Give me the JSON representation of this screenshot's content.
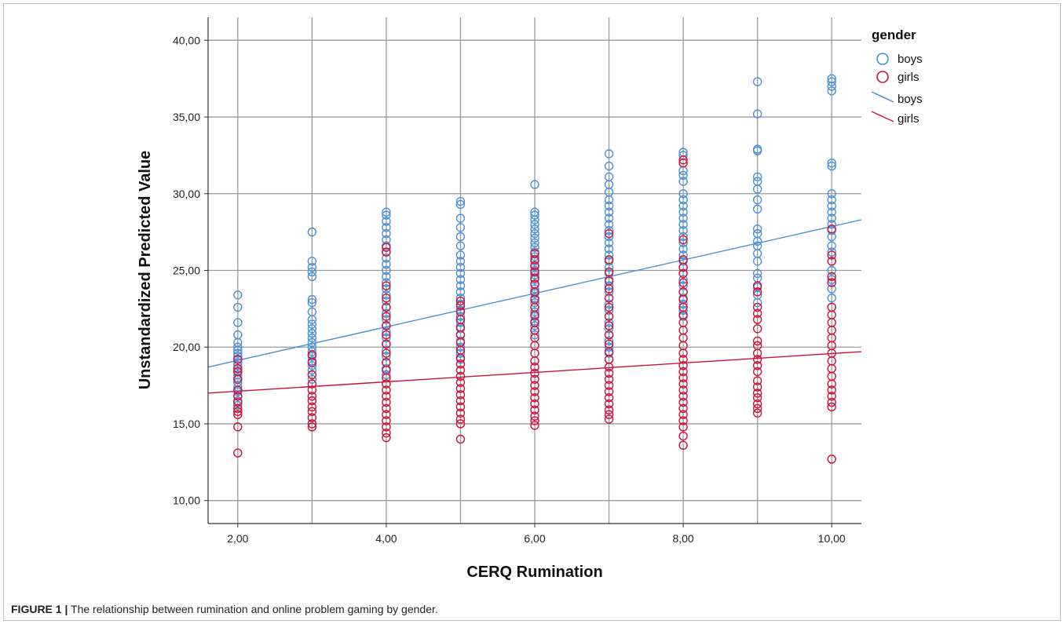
{
  "caption": {
    "label": "FIGURE 1 |",
    "text": "The relationship between rumination and online problem gaming by gender."
  },
  "colors": {
    "boys": "#4a90d9",
    "girls": "#d0103a",
    "grid": "#9a9a9a",
    "axis": "#333333"
  },
  "chart_data": {
    "type": "scatter",
    "xlabel": "CERQ Rumination",
    "ylabel": "Unstandardized Predicted Value",
    "xlim": [
      1.6,
      10.4
    ],
    "ylim": [
      8.5,
      41.5
    ],
    "x_ticks": [
      2,
      4,
      6,
      8,
      10
    ],
    "x_tick_labels": [
      "2,00",
      "4,00",
      "6,00",
      "8,00",
      "10,00"
    ],
    "x_grid": [
      2,
      3,
      4,
      5,
      6,
      7,
      8,
      9,
      10
    ],
    "y_ticks": [
      10,
      15,
      20,
      25,
      30,
      35,
      40
    ],
    "y_tick_labels": [
      "10,00",
      "15,00",
      "20,00",
      "25,00",
      "30,00",
      "35,00",
      "40,00"
    ],
    "grid": true,
    "legend": {
      "title": "gender",
      "position": "top-right",
      "entries": [
        {
          "label": "boys",
          "kind": "marker",
          "series": "boys"
        },
        {
          "label": "girls",
          "kind": "marker",
          "series": "girls"
        },
        {
          "label": "boys",
          "kind": "line",
          "series": "boys"
        },
        {
          "label": "girls",
          "kind": "line",
          "series": "girls"
        }
      ]
    },
    "series": [
      {
        "name": "boys",
        "points": [
          {
            "x": 2,
            "y": [
              23.4,
              22.6,
              21.6,
              20.8,
              20.3,
              20.0,
              19.8,
              19.6,
              19.4,
              19.2,
              19.0,
              18.8,
              18.6,
              18.4,
              18.2,
              18.0,
              17.7,
              17.4,
              17.1,
              16.8,
              16.5,
              16.2
            ]
          },
          {
            "x": 3,
            "y": [
              27.5,
              25.6,
              25.2,
              24.9,
              24.6,
              23.1,
              22.9,
              22.3,
              21.8,
              21.5,
              21.2,
              20.9,
              20.6,
              20.3,
              20.0,
              19.7,
              19.4,
              19.1,
              18.8,
              18.5,
              18.2,
              17.9
            ]
          },
          {
            "x": 4,
            "y": [
              28.8,
              28.6,
              28.2,
              27.8,
              27.4,
              27.0,
              26.6,
              26.2,
              25.8,
              25.4,
              25.0,
              24.6,
              24.2,
              23.8,
              23.4,
              23.0,
              22.6,
              22.2,
              21.8,
              21.4,
              21.0,
              20.6,
              20.2,
              19.8,
              19.4,
              19.0,
              18.6,
              18.2
            ]
          },
          {
            "x": 5,
            "y": [
              29.5,
              29.3,
              28.4,
              27.8,
              27.2,
              26.6,
              26.0,
              25.6,
              25.2,
              24.8,
              24.4,
              24.0,
              23.6,
              23.2,
              22.8,
              22.4,
              22.0,
              21.6,
              21.2,
              20.8,
              20.4,
              20.0,
              19.6,
              19.2
            ]
          },
          {
            "x": 6,
            "y": [
              30.6,
              28.8,
              28.6,
              28.3,
              28.0,
              27.7,
              27.4,
              27.1,
              26.8,
              26.5,
              26.2,
              25.9,
              25.6,
              25.3,
              25.0,
              24.7,
              24.4,
              24.1,
              23.8,
              23.5,
              23.2,
              22.9,
              22.6,
              22.3,
              22.0,
              21.7,
              21.4,
              21.1,
              20.8
            ]
          },
          {
            "x": 7,
            "y": [
              32.6,
              31.8,
              31.1,
              30.6,
              30.1,
              29.6,
              29.2,
              28.8,
              28.4,
              28.0,
              27.6,
              27.2,
              26.8,
              26.4,
              26.0,
              25.6,
              25.2,
              24.8,
              24.4,
              24.0,
              23.6,
              23.2,
              22.8,
              22.4,
              22.0,
              21.6,
              21.2,
              20.8,
              20.4,
              20.0,
              19.6,
              19.2
            ]
          },
          {
            "x": 8,
            "y": [
              32.7,
              32.5,
              31.5,
              31.2,
              30.8,
              30.0,
              29.6,
              29.2,
              28.8,
              28.4,
              28.0,
              27.6,
              27.2,
              26.8,
              26.4,
              26.0,
              25.6,
              25.2,
              24.8,
              24.4,
              24.0,
              23.6,
              23.2,
              22.8,
              22.4,
              22.0
            ]
          },
          {
            "x": 9,
            "y": [
              37.3,
              35.2,
              32.9,
              32.8,
              31.1,
              30.8,
              30.3,
              29.6,
              29.0,
              27.7,
              27.4,
              26.9,
              26.6,
              26.1,
              25.6,
              24.8,
              24.5,
              23.9,
              23.4,
              22.9
            ]
          },
          {
            "x": 10,
            "y": [
              37.5,
              37.3,
              37.0,
              36.7,
              32.0,
              31.8,
              30.0,
              29.6,
              29.2,
              28.8,
              28.4,
              28.0,
              27.6,
              27.2,
              26.6,
              26.2,
              25.6,
              25.0,
              24.4,
              23.8,
              23.2,
              22.6
            ]
          }
        ],
        "fit_line": {
          "x": [
            1.6,
            10.4
          ],
          "y": [
            18.7,
            28.3
          ]
        }
      },
      {
        "name": "girls",
        "points": [
          {
            "x": 2,
            "y": [
              19.2,
              18.6,
              18.4,
              17.9,
              17.2,
              16.8,
              16.4,
              16.0,
              15.8,
              15.6,
              14.8,
              13.1
            ]
          },
          {
            "x": 3,
            "y": [
              19.5,
              19.0,
              18.2,
              17.6,
              17.2,
              16.8,
              16.5,
              16.1,
              15.8,
              15.4,
              15.0,
              14.8
            ]
          },
          {
            "x": 4,
            "y": [
              26.5,
              26.2,
              24.0,
              23.2,
              22.6,
              22.0,
              21.4,
              20.8,
              20.2,
              19.6,
              19.0,
              18.5,
              18.0,
              17.6,
              17.2,
              16.8,
              16.4,
              16.0,
              15.6,
              15.2,
              14.8,
              14.4,
              14.1
            ]
          },
          {
            "x": 5,
            "y": [
              23.0,
              22.7,
              22.3,
              21.8,
              21.3,
              20.8,
              20.3,
              19.8,
              19.3,
              18.9,
              18.5,
              18.1,
              17.7,
              17.3,
              16.9,
              16.5,
              16.1,
              15.7,
              15.3,
              15.0,
              14.0
            ]
          },
          {
            "x": 6,
            "y": [
              26.1,
              25.7,
              25.3,
              24.9,
              24.5,
              24.1,
              23.6,
              23.1,
              22.6,
              22.1,
              21.6,
              21.1,
              20.6,
              20.1,
              19.6,
              19.1,
              18.7,
              18.3,
              17.9,
              17.5,
              17.1,
              16.7,
              16.3,
              15.9,
              15.5,
              15.2,
              14.9
            ]
          },
          {
            "x": 7,
            "y": [
              27.4,
              25.7,
              24.9,
              24.3,
              23.8,
              23.2,
              22.6,
              22.0,
              21.4,
              20.8,
              20.2,
              19.7,
              19.2,
              18.7,
              18.3,
              17.9,
              17.5,
              17.1,
              16.7,
              16.3,
              15.9,
              15.6,
              15.3
            ]
          },
          {
            "x": 8,
            "y": [
              32.2,
              32.0,
              27.0,
              25.7,
              25.2,
              24.8,
              24.2,
              23.6,
              23.1,
              22.6,
              22.1,
              21.6,
              21.1,
              20.6,
              20.1,
              19.6,
              19.2,
              18.8,
              18.4,
              18.0,
              17.6,
              17.2,
              16.8,
              16.4,
              16.0,
              15.6,
              15.2,
              14.8,
              14.2,
              13.6
            ]
          },
          {
            "x": 9,
            "y": [
              24.0,
              23.6,
              22.6,
              22.2,
              21.8,
              21.2,
              20.4,
              20.1,
              19.6,
              19.2,
              18.8,
              18.4,
              17.8,
              17.4,
              17.0,
              16.7,
              16.3,
              16.0,
              15.7
            ]
          },
          {
            "x": 10,
            "y": [
              27.7,
              26.0,
              25.6,
              24.6,
              24.2,
              22.6,
              22.1,
              21.6,
              21.1,
              20.6,
              20.1,
              19.6,
              19.1,
              18.6,
              18.1,
              17.6,
              17.2,
              16.8,
              16.4,
              16.1,
              12.7
            ]
          }
        ],
        "fit_line": {
          "x": [
            1.6,
            10.4
          ],
          "y": [
            17.0,
            19.7
          ]
        }
      }
    ]
  }
}
